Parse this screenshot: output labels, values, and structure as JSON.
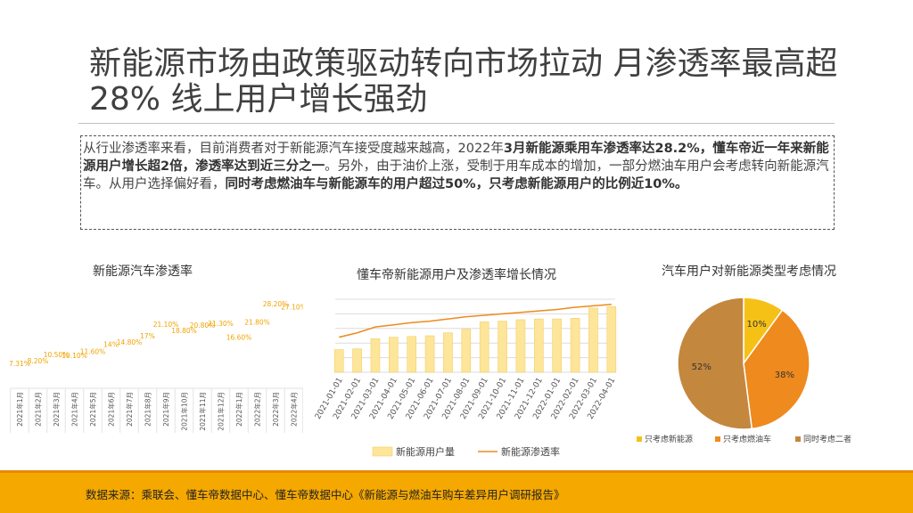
{
  "header": {
    "title": "新能源市场由政策驱动转向市场拉动 月渗透率最高超28%  线上用户增长强劲"
  },
  "summary": {
    "p1": "从行业渗透率来看，目前消费者对于新能源汽车接受度越来越高，2022年",
    "b1": "3月新能源乘用车渗透率达28.2%，懂车帝近一年来新能源用户增长超2倍，渗透率达到近三分之一",
    "p2": "。另外，由于油价上涨，受制于用车成本的增加，一部分燃油车用户会考虑转向新能源汽车。从用户选择偏好看，",
    "b2": "同时考虑燃油车与新能源车的用户超过50%，只考虑新能源用户的比例近10%。"
  },
  "footer": {
    "source": "数据来源：乘联会、懂车帝数据中心、懂车帝数据中心《新能源与燃油车购车差异用户调研报告》"
  },
  "colors": {
    "accent": "#f5a800",
    "bar": "#fde59a",
    "bar_edge": "#f3cf66",
    "line": "#ee8a1e",
    "pie_a": "#f6c117",
    "pie_b": "#ee8a1e",
    "pie_c": "#c4873e"
  },
  "chart_data": [
    {
      "type": "scatter",
      "title": "新能源汽车渗透率",
      "categories": [
        "2021年1月",
        "2021年2月",
        "2021年3月",
        "2021年4月",
        "2021年5月",
        "2021年6月",
        "2021年7月",
        "2021年8月",
        "2021年9月",
        "2021年10月",
        "2021年11月",
        "2021年12月",
        "2022年1月",
        "2022年2月",
        "2022年3月",
        "2022年4月"
      ],
      "labels": [
        "7.31%",
        "8.20%",
        "10.50%",
        "10.10%",
        "11.60%",
        "14%",
        "14.80%",
        "17%",
        "21.10%",
        "18.80%",
        "20.80%",
        "21.30%",
        "16.60%",
        "21.80%",
        "28.20%",
        "27.10%"
      ],
      "values": [
        7.31,
        8.2,
        10.5,
        10.1,
        11.6,
        14,
        14.8,
        17,
        21.1,
        18.8,
        20.8,
        21.3,
        16.6,
        21.8,
        28.2,
        27.1
      ]
    },
    {
      "type": "bar",
      "title": "懂车帝新能源用户及渗透率增长情况",
      "categories": [
        "2021-01-01",
        "2021-02-01",
        "2021-03-01",
        "2021-04-01",
        "2021-05-01",
        "2021-06-01",
        "2021-07-01",
        "2021-08-01",
        "2021-09-01",
        "2021-10-01",
        "2021-11-01",
        "2021-12-01",
        "2022-01-01",
        "2022-02-01",
        "2022-03-01",
        "2022-04-01"
      ],
      "series": [
        {
          "name": "新能源用户量",
          "type": "bar",
          "values": [
            31,
            32,
            46,
            48,
            49,
            50,
            54,
            59,
            69,
            70,
            72,
            73,
            73,
            74,
            88,
            90
          ]
        },
        {
          "name": "新能源渗透率",
          "type": "line",
          "values": [
            48,
            54,
            62,
            65,
            68,
            70,
            73,
            76,
            78,
            80,
            82,
            84,
            86,
            89,
            91,
            93
          ]
        }
      ],
      "ylim": [
        0,
        100
      ],
      "grid": true,
      "legend": "bottom"
    },
    {
      "type": "pie",
      "title": "汽车用户对新能源类型考虑情况",
      "slices": [
        {
          "label": "只考虑新能源",
          "value": 10,
          "display": "10%"
        },
        {
          "label": "只考虑燃油车",
          "value": 38,
          "display": "38%"
        },
        {
          "label": "同时考虑二者",
          "value": 52,
          "display": "52%"
        }
      ],
      "legend": "bottom"
    }
  ]
}
